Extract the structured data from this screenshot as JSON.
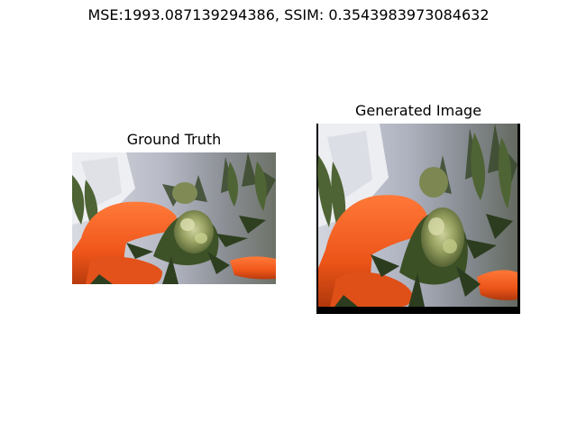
{
  "figure": {
    "suptitle": "MSE:1993.087139294386, SSIM: 0.3543983973084632",
    "panels": [
      {
        "title": "Ground Truth",
        "image": "cannabis-bud-gloved-hand-photo"
      },
      {
        "title": "Generated Image",
        "image": "cannabis-bud-gloved-hand-photo-generated"
      }
    ]
  }
}
